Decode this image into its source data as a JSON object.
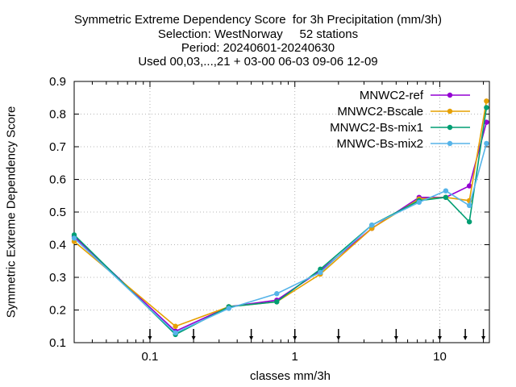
{
  "chart_data": {
    "type": "line",
    "title": [
      "Symmetric Extreme Dependency Score  for 3h Precipitation (mm/3h)",
      "Selection: WestNorway     52 stations",
      "Period: 20240601-20240630",
      "Used 00,03,...,21 + 03-00 06-03 09-06 12-09"
    ],
    "xlabel": "classes mm/3h",
    "ylabel": "Symmetric Extreme Dependency Score",
    "xscale": "log",
    "xlim": [
      0.03,
      22
    ],
    "ylim": [
      0.1,
      0.9
    ],
    "xticks": [
      {
        "value": 0.1,
        "label": "0.1"
      },
      {
        "value": 1,
        "label": "1"
      },
      {
        "value": 10,
        "label": "10"
      }
    ],
    "yticks": [
      0.1,
      0.2,
      0.3,
      0.4,
      0.5,
      0.6,
      0.7,
      0.8,
      0.9
    ],
    "class_arrows": [
      0.1,
      0.2,
      0.5,
      1,
      2,
      5,
      10,
      15,
      20
    ],
    "grid": true,
    "legend_position": "top-right",
    "series": [
      {
        "name": "MNWC2-ref",
        "color": "#9400d3",
        "x": [
          0.03,
          0.15,
          0.35,
          0.75,
          1.5,
          3.4,
          7.2,
          11,
          16,
          21
        ],
        "y": [
          0.425,
          0.135,
          0.21,
          0.23,
          0.32,
          0.45,
          0.545,
          0.545,
          0.58,
          0.775
        ]
      },
      {
        "name": "MNWC2-Bscale",
        "color": "#e6a000",
        "x": [
          0.03,
          0.15,
          0.35,
          0.75,
          1.5,
          3.4,
          7.2,
          11,
          16,
          21
        ],
        "y": [
          0.41,
          0.15,
          0.21,
          0.225,
          0.31,
          0.45,
          0.54,
          0.545,
          0.535,
          0.84
        ]
      },
      {
        "name": "MNWC2-Bs-mix1",
        "color": "#009e73",
        "x": [
          0.03,
          0.15,
          0.35,
          0.75,
          1.5,
          3.4,
          7.2,
          11,
          16,
          21
        ],
        "y": [
          0.43,
          0.125,
          0.21,
          0.225,
          0.325,
          0.46,
          0.535,
          0.545,
          0.47,
          0.82
        ]
      },
      {
        "name": "MNWC-Bs-mix2",
        "color": "#56b4e9",
        "x": [
          0.03,
          0.15,
          0.35,
          0.75,
          1.5,
          3.4,
          7.2,
          11,
          16,
          21
        ],
        "y": [
          0.42,
          0.13,
          0.205,
          0.25,
          0.315,
          0.46,
          0.53,
          0.565,
          0.52,
          0.71
        ]
      }
    ]
  }
}
